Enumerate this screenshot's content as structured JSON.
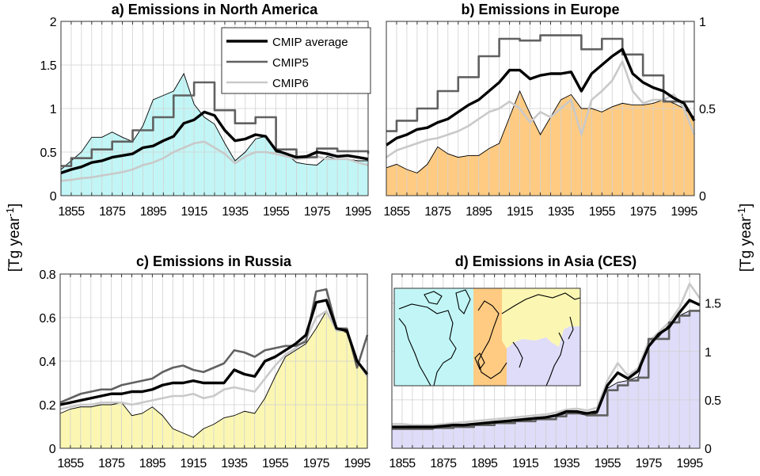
{
  "figure": {
    "ylabel_left": "[Tg year",
    "ylabel_right": "[Tg year",
    "ylabel_exponent": "-1"
  },
  "legend": {
    "entries": [
      "CMIP average",
      "CMIP5",
      "CMIP6"
    ],
    "placement": "top-right of panel a"
  },
  "colors": {
    "cmip_average": "#000000",
    "cmip5": "#616161",
    "cmip6": "#c9c9c9",
    "north_america": "#c2f6f6",
    "europe": "#ffcb82",
    "russia": "#fbf7b3",
    "asia": "#dedcf8",
    "grid": "#d0d0d0"
  },
  "inset_map": {
    "regions": [
      "North America",
      "Europe",
      "Russia",
      "Asia (CES)"
    ]
  },
  "chart_data": [
    {
      "type": "area+line",
      "title": "a) Emissions in North America",
      "xlim": [
        1850,
        2000
      ],
      "ylim": [
        0,
        2
      ],
      "yaxis_side": "left",
      "x_ticks": [
        "1855",
        "1875",
        "1895",
        "1915",
        "1935",
        "1955",
        "1975",
        "1995"
      ],
      "y_ticks": [
        "0",
        "0.5",
        "1",
        "1.5",
        "2"
      ],
      "grid": true,
      "fill_color_key": "north_america",
      "x": [
        1850,
        1855,
        1860,
        1865,
        1870,
        1875,
        1880,
        1885,
        1890,
        1895,
        1900,
        1905,
        1910,
        1915,
        1920,
        1925,
        1930,
        1935,
        1940,
        1945,
        1950,
        1955,
        1960,
        1965,
        1970,
        1975,
        1980,
        1985,
        1990,
        1995,
        2000
      ],
      "series": [
        {
          "key": "region_fill",
          "values": [
            0.3,
            0.4,
            0.5,
            0.67,
            0.67,
            0.73,
            0.67,
            0.62,
            0.8,
            1.1,
            1.15,
            1.2,
            1.4,
            1.05,
            0.9,
            0.82,
            0.6,
            0.4,
            0.5,
            0.65,
            0.68,
            0.5,
            0.48,
            0.38,
            0.36,
            0.35,
            0.45,
            0.42,
            0.42,
            0.4,
            0.4
          ]
        },
        {
          "key": "cmip5",
          "name": "CMIP5",
          "step": true,
          "values": [
            0.34,
            0.43,
            0.43,
            0.53,
            0.53,
            0.62,
            0.62,
            0.75,
            0.75,
            0.9,
            0.9,
            1.15,
            1.15,
            1.3,
            1.3,
            0.98,
            0.98,
            0.83,
            0.83,
            0.9,
            0.9,
            0.53,
            0.53,
            0.44,
            0.44,
            0.54,
            0.54,
            0.51,
            0.51,
            0.51,
            0.48
          ]
        },
        {
          "key": "cmip6",
          "name": "CMIP6",
          "values": [
            0.17,
            0.18,
            0.2,
            0.21,
            0.23,
            0.25,
            0.27,
            0.3,
            0.35,
            0.38,
            0.43,
            0.5,
            0.55,
            0.6,
            0.62,
            0.55,
            0.48,
            0.37,
            0.45,
            0.5,
            0.5,
            0.48,
            0.45,
            0.42,
            0.43,
            0.45,
            0.42,
            0.42,
            0.42,
            0.38,
            0.35
          ]
        },
        {
          "key": "cmip_average",
          "name": "CMIP average",
          "values": [
            0.26,
            0.3,
            0.33,
            0.38,
            0.4,
            0.44,
            0.46,
            0.48,
            0.55,
            0.57,
            0.63,
            0.68,
            0.83,
            0.87,
            0.96,
            0.92,
            0.75,
            0.63,
            0.65,
            0.7,
            0.68,
            0.52,
            0.48,
            0.44,
            0.45,
            0.5,
            0.48,
            0.45,
            0.46,
            0.44,
            0.42
          ]
        }
      ]
    },
    {
      "type": "area+line",
      "title": "b) Emissions in Europe",
      "xlim": [
        1850,
        2000
      ],
      "ylim": [
        0,
        1
      ],
      "yaxis_side": "right",
      "x_ticks": [
        "1855",
        "1875",
        "1895",
        "1915",
        "1935",
        "1955",
        "1975",
        "1995"
      ],
      "y_ticks": [
        "0",
        "0.5",
        "1"
      ],
      "grid": true,
      "fill_color_key": "europe",
      "x": [
        1850,
        1855,
        1860,
        1865,
        1870,
        1875,
        1880,
        1885,
        1890,
        1895,
        1900,
        1905,
        1910,
        1915,
        1920,
        1925,
        1930,
        1935,
        1940,
        1945,
        1950,
        1955,
        1960,
        1965,
        1970,
        1975,
        1980,
        1985,
        1990,
        1995,
        2000
      ],
      "series": [
        {
          "key": "region_fill",
          "values": [
            0.16,
            0.18,
            0.15,
            0.13,
            0.18,
            0.28,
            0.24,
            0.22,
            0.23,
            0.23,
            0.27,
            0.3,
            0.45,
            0.6,
            0.47,
            0.35,
            0.45,
            0.55,
            0.58,
            0.5,
            0.5,
            0.48,
            0.51,
            0.53,
            0.52,
            0.52,
            0.53,
            0.55,
            0.53,
            0.5,
            0.45
          ]
        },
        {
          "key": "cmip5",
          "name": "CMIP5",
          "step": true,
          "values": [
            0.37,
            0.43,
            0.43,
            0.5,
            0.5,
            0.6,
            0.6,
            0.68,
            0.68,
            0.8,
            0.8,
            0.9,
            0.9,
            0.89,
            0.89,
            0.92,
            0.92,
            0.92,
            0.92,
            0.84,
            0.84,
            0.9,
            0.9,
            0.81,
            0.81,
            0.69,
            0.69,
            0.54,
            0.54,
            0.54,
            0.54
          ]
        },
        {
          "key": "cmip6",
          "name": "CMIP6",
          "values": [
            0.22,
            0.26,
            0.28,
            0.3,
            0.32,
            0.33,
            0.35,
            0.37,
            0.4,
            0.44,
            0.48,
            0.5,
            0.54,
            0.5,
            0.42,
            0.48,
            0.45,
            0.5,
            0.55,
            0.35,
            0.55,
            0.6,
            0.66,
            0.77,
            0.6,
            0.53,
            0.55,
            0.55,
            0.58,
            0.5,
            0.35
          ]
        },
        {
          "key": "cmip_average",
          "name": "CMIP average",
          "values": [
            0.29,
            0.33,
            0.35,
            0.38,
            0.39,
            0.42,
            0.44,
            0.48,
            0.52,
            0.55,
            0.6,
            0.65,
            0.72,
            0.72,
            0.67,
            0.69,
            0.7,
            0.7,
            0.71,
            0.6,
            0.7,
            0.75,
            0.8,
            0.84,
            0.7,
            0.65,
            0.62,
            0.6,
            0.56,
            0.53,
            0.43
          ]
        }
      ]
    },
    {
      "type": "area+line",
      "title": "c) Emissions in Russia",
      "xlim": [
        1850,
        2000
      ],
      "ylim": [
        0,
        0.8
      ],
      "yaxis_side": "left",
      "x_ticks": [
        "1855",
        "1875",
        "1895",
        "1915",
        "1935",
        "1955",
        "1975",
        "1995"
      ],
      "y_ticks": [
        "0",
        "0.2",
        "0.4",
        "0.6",
        "0.8"
      ],
      "grid": true,
      "fill_color_key": "russia",
      "x": [
        1850,
        1855,
        1860,
        1865,
        1870,
        1875,
        1880,
        1885,
        1890,
        1895,
        1900,
        1905,
        1910,
        1915,
        1920,
        1925,
        1930,
        1935,
        1940,
        1945,
        1950,
        1955,
        1960,
        1965,
        1970,
        1975,
        1980,
        1985,
        1990,
        1995,
        2000
      ],
      "series": [
        {
          "key": "region_fill",
          "values": [
            0.16,
            0.18,
            0.19,
            0.19,
            0.2,
            0.2,
            0.21,
            0.15,
            0.16,
            0.19,
            0.15,
            0.09,
            0.07,
            0.05,
            0.09,
            0.11,
            0.14,
            0.15,
            0.17,
            0.16,
            0.23,
            0.33,
            0.42,
            0.45,
            0.48,
            0.55,
            0.63,
            0.55,
            0.53,
            0.4,
            0.33
          ]
        },
        {
          "key": "cmip5",
          "name": "CMIP5",
          "values": [
            0.21,
            0.23,
            0.25,
            0.26,
            0.27,
            0.27,
            0.29,
            0.3,
            0.31,
            0.32,
            0.35,
            0.37,
            0.38,
            0.36,
            0.35,
            0.37,
            0.39,
            0.45,
            0.44,
            0.42,
            0.45,
            0.46,
            0.47,
            0.47,
            0.49,
            0.72,
            0.73,
            0.55,
            0.55,
            0.37,
            0.52
          ]
        },
        {
          "key": "cmip6",
          "name": "CMIP6",
          "values": [
            0.18,
            0.19,
            0.2,
            0.2,
            0.21,
            0.21,
            0.21,
            0.2,
            0.21,
            0.22,
            0.23,
            0.24,
            0.24,
            0.25,
            0.23,
            0.24,
            0.27,
            0.28,
            0.27,
            0.26,
            0.32,
            0.38,
            0.43,
            0.46,
            0.5,
            0.6,
            0.63,
            0.54,
            0.54,
            0.4,
            0.33
          ]
        },
        {
          "key": "cmip_average",
          "name": "CMIP average",
          "values": [
            0.2,
            0.21,
            0.22,
            0.23,
            0.24,
            0.25,
            0.25,
            0.26,
            0.26,
            0.27,
            0.29,
            0.3,
            0.3,
            0.31,
            0.3,
            0.3,
            0.3,
            0.36,
            0.34,
            0.33,
            0.4,
            0.42,
            0.45,
            0.48,
            0.52,
            0.67,
            0.68,
            0.55,
            0.54,
            0.4,
            0.34
          ]
        }
      ]
    },
    {
      "type": "area+line",
      "title": "d) Emissions in Asia (CES)",
      "xlim": [
        1850,
        2000
      ],
      "ylim": [
        0,
        1.8
      ],
      "yaxis_side": "right",
      "x_ticks": [
        "1855",
        "1875",
        "1895",
        "1915",
        "1935",
        "1955",
        "1975",
        "1995"
      ],
      "y_ticks": [
        "0",
        "0.5",
        "1",
        "1.5"
      ],
      "grid": true,
      "fill_color_key": "asia",
      "x": [
        1850,
        1855,
        1860,
        1865,
        1870,
        1875,
        1880,
        1885,
        1890,
        1895,
        1900,
        1905,
        1910,
        1915,
        1920,
        1925,
        1930,
        1935,
        1940,
        1945,
        1950,
        1955,
        1960,
        1965,
        1970,
        1975,
        1980,
        1985,
        1990,
        1995,
        2000
      ],
      "series": [
        {
          "key": "region_fill",
          "values": [
            0.2,
            0.2,
            0.2,
            0.2,
            0.21,
            0.22,
            0.23,
            0.23,
            0.24,
            0.25,
            0.26,
            0.27,
            0.28,
            0.29,
            0.3,
            0.31,
            0.33,
            0.36,
            0.36,
            0.34,
            0.36,
            0.62,
            0.68,
            0.7,
            0.74,
            1.1,
            1.15,
            1.28,
            1.37,
            1.42,
            1.42
          ]
        },
        {
          "key": "cmip5",
          "name": "CMIP5",
          "step": true,
          "values": [
            0.2,
            0.2,
            0.2,
            0.2,
            0.21,
            0.21,
            0.22,
            0.22,
            0.24,
            0.24,
            0.26,
            0.26,
            0.28,
            0.28,
            0.3,
            0.3,
            0.33,
            0.36,
            0.36,
            0.34,
            0.34,
            0.6,
            0.65,
            0.7,
            0.73,
            1.13,
            1.13,
            1.3,
            1.37,
            1.42,
            1.42
          ]
        },
        {
          "key": "cmip6",
          "name": "CMIP6",
          "values": [
            0.25,
            0.25,
            0.24,
            0.24,
            0.24,
            0.25,
            0.26,
            0.27,
            0.28,
            0.29,
            0.3,
            0.31,
            0.32,
            0.33,
            0.34,
            0.35,
            0.37,
            0.4,
            0.41,
            0.39,
            0.42,
            0.7,
            0.88,
            0.75,
            0.83,
            1.1,
            1.2,
            1.3,
            1.45,
            1.7,
            1.55
          ]
        },
        {
          "key": "cmip_average",
          "name": "CMIP average",
          "values": [
            0.22,
            0.22,
            0.22,
            0.22,
            0.22,
            0.23,
            0.24,
            0.24,
            0.25,
            0.26,
            0.27,
            0.28,
            0.29,
            0.3,
            0.31,
            0.32,
            0.34,
            0.38,
            0.38,
            0.36,
            0.38,
            0.65,
            0.78,
            0.72,
            0.8,
            1.05,
            1.18,
            1.25,
            1.4,
            1.53,
            1.48
          ]
        }
      ]
    }
  ]
}
